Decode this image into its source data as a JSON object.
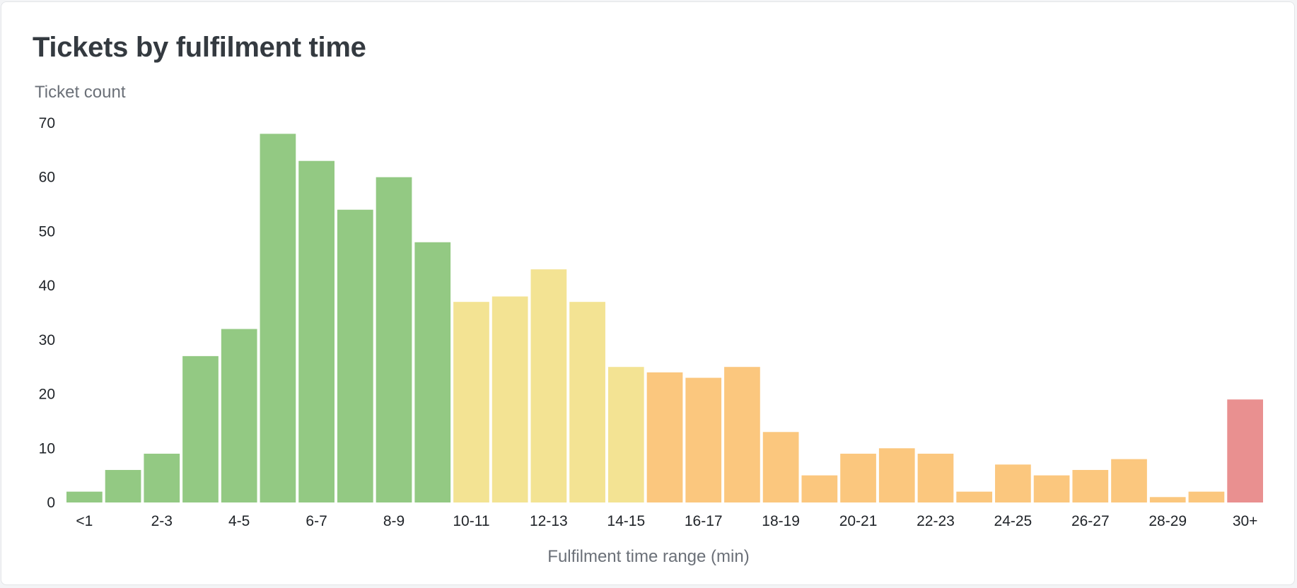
{
  "chart_data": {
    "type": "bar",
    "title": "Tickets by fulfilment time",
    "ylabel": "Ticket count",
    "xlabel": "Fulfilment time range (min)",
    "ylim": [
      0,
      70
    ],
    "yticks": [
      0,
      10,
      20,
      30,
      40,
      50,
      60,
      70
    ],
    "grid": false,
    "categories": [
      "<1",
      "1-2",
      "2-3",
      "3-4",
      "4-5",
      "5-6",
      "6-7",
      "7-8",
      "8-9",
      "9-10",
      "10-11",
      "11-12",
      "12-13",
      "13-14",
      "14-15",
      "15-16",
      "16-17",
      "17-18",
      "18-19",
      "19-20",
      "20-21",
      "21-22",
      "22-23",
      "23-24",
      "24-25",
      "25-26",
      "26-27",
      "27-28",
      "28-29",
      "29-30",
      "30+"
    ],
    "tick_labels": [
      "<1",
      "",
      "2-3",
      "",
      "4-5",
      "",
      "6-7",
      "",
      "8-9",
      "",
      "10-11",
      "",
      "12-13",
      "",
      "14-15",
      "",
      "16-17",
      "",
      "18-19",
      "",
      "20-21",
      "",
      "22-23",
      "",
      "24-25",
      "",
      "26-27",
      "",
      "28-29",
      "",
      "30+"
    ],
    "values": [
      2,
      6,
      9,
      27,
      32,
      68,
      63,
      54,
      60,
      48,
      37,
      38,
      43,
      37,
      25,
      24,
      23,
      25,
      13,
      5,
      9,
      10,
      9,
      2,
      7,
      5,
      6,
      8,
      1,
      2,
      19
    ],
    "bar_colors": [
      "#93c983",
      "#93c983",
      "#93c983",
      "#93c983",
      "#93c983",
      "#93c983",
      "#93c983",
      "#93c983",
      "#93c983",
      "#93c983",
      "#f3e393",
      "#f3e393",
      "#f3e393",
      "#f3e393",
      "#f3e393",
      "#fbc77e",
      "#fbc77e",
      "#fbc77e",
      "#fbc77e",
      "#fbc77e",
      "#fbc77e",
      "#fbc77e",
      "#fbc77e",
      "#fbc77e",
      "#fbc77e",
      "#fbc77e",
      "#fbc77e",
      "#fbc77e",
      "#fbc77e",
      "#fbc77e",
      "#e99090"
    ]
  }
}
